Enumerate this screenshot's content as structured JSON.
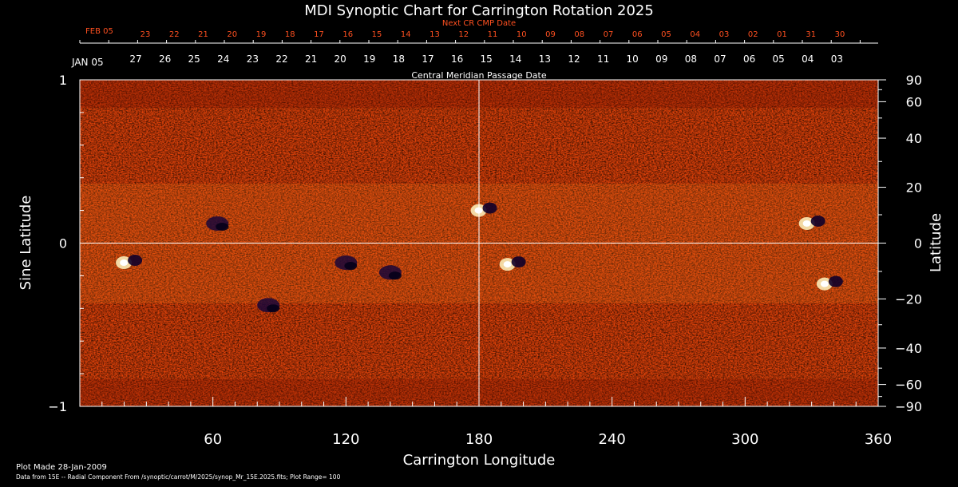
{
  "chart_data": {
    "type": "heatmap",
    "title": "MDI Synoptic Chart for Carrington Rotation 2025",
    "xlabel": "Carrington Longitude",
    "ylabel_left": "Sine Latitude",
    "ylabel_right": "Latitude",
    "xlim": [
      0,
      360
    ],
    "ylim": [
      -1,
      1
    ],
    "x_ticks": [
      60,
      120,
      180,
      240,
      300,
      360
    ],
    "y_ticks_left": [
      {
        "value": 1,
        "label": "1"
      },
      {
        "value": 0,
        "label": "0"
      },
      {
        "value": -1,
        "label": "−1"
      }
    ],
    "y_ticks_right": [
      90,
      60,
      40,
      20,
      0,
      -20,
      -40,
      -60,
      -90
    ],
    "top_axis_label": "Central Meridian Passage Date",
    "cmp_start_label": "JAN 05",
    "cmp_days": [
      "27",
      "26",
      "25",
      "24",
      "23",
      "22",
      "21",
      "20",
      "19",
      "18",
      "17",
      "16",
      "15",
      "14",
      "13",
      "12",
      "11",
      "10",
      "09",
      "08",
      "07",
      "06",
      "05",
      "04",
      "03"
    ],
    "next_cr_label": "Next CR CMP Date",
    "next_start_label": "FEB 05",
    "next_days": [
      "23",
      "22",
      "21",
      "20",
      "19",
      "18",
      "17",
      "16",
      "15",
      "14",
      "13",
      "12",
      "11",
      "10",
      "09",
      "08",
      "07",
      "06",
      "05",
      "04",
      "03",
      "02",
      "01",
      "31",
      "30"
    ],
    "colorscale": [
      "#000040",
      "#2a0a4a",
      "#8a1a00",
      "#e04000",
      "#ff6a10",
      "#ffd040",
      "#ffffff"
    ],
    "plot_made": "Plot Made 28-Jan-2009",
    "data_source": "Data from 15E -- Radial Component From /synoptic/carrot/M/2025/synop_Mr_15E.2025.fits; Plot Range= 100",
    "active_regions": [
      {
        "lon": 182,
        "lat": 0.2,
        "polarity": "mixed"
      },
      {
        "lon": 195,
        "lat": -0.13,
        "polarity": "mixed"
      },
      {
        "lon": 330,
        "lat": 0.12,
        "polarity": "mixed"
      },
      {
        "lon": 140,
        "lat": -0.18,
        "polarity": "negative"
      },
      {
        "lon": 22,
        "lat": -0.12,
        "polarity": "mixed"
      },
      {
        "lon": 338,
        "lat": -0.25,
        "polarity": "mixed"
      },
      {
        "lon": 62,
        "lat": 0.12,
        "polarity": "negative"
      },
      {
        "lon": 120,
        "lat": -0.12,
        "polarity": "negative"
      },
      {
        "lon": 85,
        "lat": -0.38,
        "polarity": "negative"
      }
    ]
  }
}
